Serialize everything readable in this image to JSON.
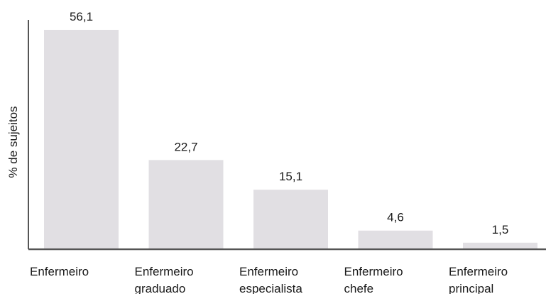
{
  "chart_data": {
    "type": "bar",
    "ylabel": "% de sujeitos",
    "xlabel": "",
    "categories": [
      [
        "Enfermeiro"
      ],
      [
        "Enfermeiro",
        "graduado"
      ],
      [
        "Enfermeiro",
        "especialista"
      ],
      [
        "Enfermeiro",
        "chefe"
      ],
      [
        "Enfermeiro",
        "principal"
      ]
    ],
    "values": [
      56.1,
      22.7,
      15.1,
      4.6,
      1.5
    ],
    "value_labels": [
      "56,1",
      "22,7",
      "15,1",
      "4,6",
      "1,5"
    ],
    "ylim": [
      0,
      56.1
    ],
    "grid": false,
    "legend": "none",
    "colors": {
      "bar": "#e1dfe3",
      "axis": "#555555",
      "text": "#1a1a1a"
    }
  }
}
